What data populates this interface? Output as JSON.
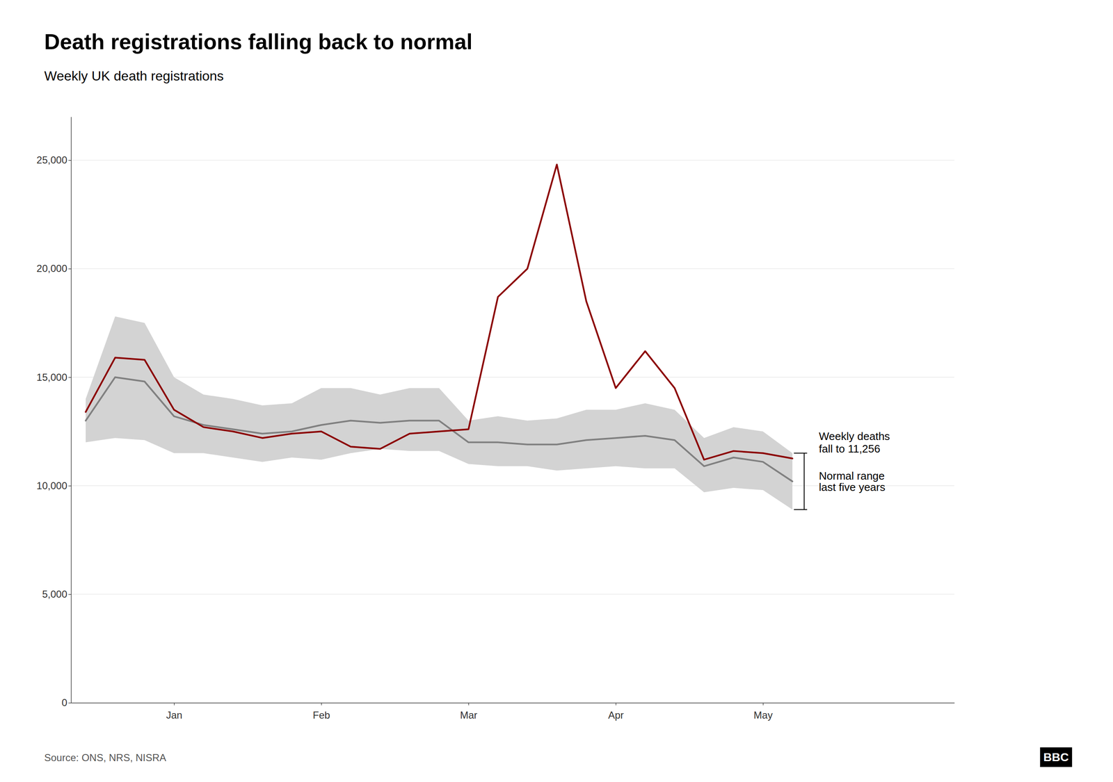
{
  "chart_data": {
    "type": "line",
    "title": "Death registrations falling back to normal",
    "subtitle": "Weekly UK death registrations",
    "source": "Source: ONS, NRS, NISRA",
    "logo": "BBC",
    "annotations": [
      "Weekly deaths",
      "fall to 11,256",
      "Normal range",
      "last five years"
    ],
    "categories": [
      null,
      null,
      null,
      "Jan",
      null,
      null,
      null,
      null,
      "Feb",
      null,
      null,
      null,
      null,
      "Mar",
      null,
      null,
      null,
      null,
      "Apr",
      null,
      null,
      null,
      null,
      "May",
      null
    ],
    "series": [
      {
        "color": "#808080",
        "values": [
          13000,
          15000,
          14800,
          13200,
          12800,
          12600,
          12400,
          12500,
          12800,
          13000,
          12900,
          13000,
          13000,
          12000,
          12000,
          11900,
          11900,
          12100,
          12200,
          12300,
          12100,
          10900,
          11300,
          11100,
          10200
        ]
      },
      {
        "color": "#8B0000",
        "values": [
          13400,
          15900,
          15800,
          13500,
          12700,
          12500,
          12200,
          12400,
          12500,
          11800,
          11700,
          12400,
          12500,
          12600,
          18700,
          20000,
          24800,
          18500,
          14500,
          16200,
          14500,
          11200,
          11600,
          11500,
          11256
        ]
      }
    ],
    "band": {
      "color": "#D3D3D3",
      "upper": [
        14000,
        17800,
        17500,
        15000,
        14200,
        14000,
        13700,
        13800,
        14500,
        14500,
        14200,
        14500,
        14500,
        13000,
        13200,
        13000,
        13100,
        13500,
        13500,
        13800,
        13500,
        12200,
        12700,
        12500,
        11500
      ],
      "lower": [
        12000,
        12200,
        12100,
        11500,
        11500,
        11300,
        11100,
        11300,
        11200,
        11500,
        11700,
        11600,
        11600,
        11000,
        10900,
        10900,
        10700,
        10800,
        10900,
        10800,
        10800,
        9700,
        9900,
        9800,
        8900
      ]
    },
    "ylim": [
      0,
      27000
    ],
    "yticks": [
      0,
      {
        "value": 5000,
        "label": "5,000"
      },
      {
        "value": 10000,
        "label": "10,000"
      },
      {
        "value": 15000,
        "label": "15,000"
      },
      {
        "value": 20000,
        "label": "20,000"
      },
      {
        "value": 25000,
        "label": "25,000"
      }
    ],
    "grid": true
  }
}
